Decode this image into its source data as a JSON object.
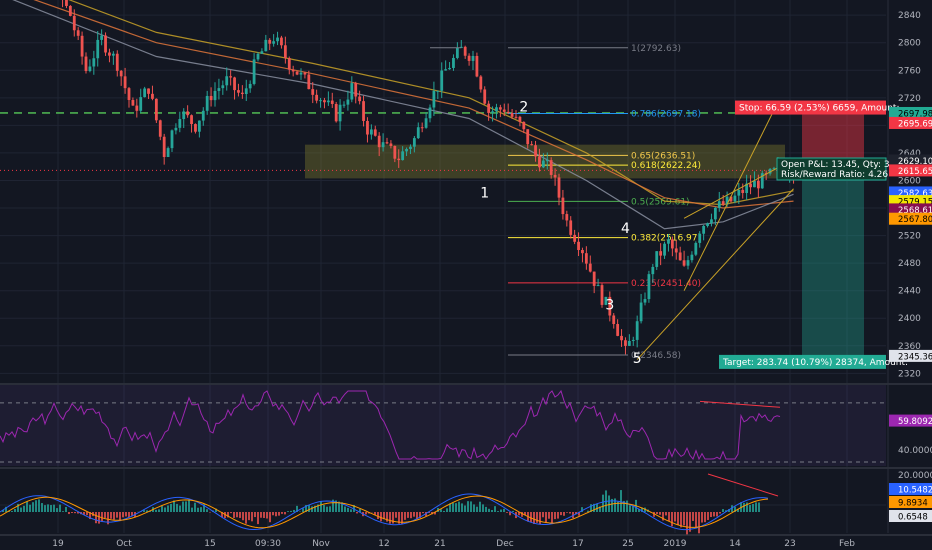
{
  "colors": {
    "background": "#131722",
    "grid": "#1f2433",
    "up_candle": "#26a69a",
    "down_candle": "#ef5350",
    "rsi_line": "#9c27b0",
    "macd_line": "#2962ff",
    "signal_line": "#ff9800",
    "stop_color": "#f23645",
    "target_color": "#22ab94"
  },
  "chart_data": {
    "type": "candlestick",
    "price_axis": {
      "ylim": [
        2306,
        2862
      ],
      "ticks": [
        2840,
        2800,
        2760,
        2720,
        2680,
        2640,
        2600,
        2560,
        2520,
        2480,
        2440,
        2400,
        2360,
        2320
      ]
    },
    "time_axis": {
      "labels": [
        "19",
        "Oct",
        "15",
        "09:30",
        "Nov",
        "12",
        "21",
        "Dec",
        "17",
        "25",
        "2019",
        "14",
        "23",
        "Feb"
      ]
    },
    "close_path": [
      [
        0,
        2935
      ],
      [
        6,
        2912
      ],
      [
        10,
        2865
      ],
      [
        14,
        2880
      ],
      [
        18,
        2840
      ],
      [
        22,
        2760
      ],
      [
        26,
        2805
      ],
      [
        30,
        2770
      ],
      [
        34,
        2700
      ],
      [
        38,
        2735
      ],
      [
        42,
        2640
      ],
      [
        46,
        2700
      ],
      [
        50,
        2680
      ],
      [
        54,
        2725
      ],
      [
        58,
        2745
      ],
      [
        62,
        2720
      ],
      [
        66,
        2780
      ],
      [
        70,
        2808
      ],
      [
        74,
        2770
      ],
      [
        78,
        2745
      ],
      [
        82,
        2720
      ],
      [
        86,
        2695
      ],
      [
        90,
        2735
      ],
      [
        94,
        2675
      ],
      [
        98,
        2650
      ],
      [
        102,
        2633
      ],
      [
        106,
        2660
      ],
      [
        110,
        2715
      ],
      [
        114,
        2760
      ],
      [
        118,
        2790
      ],
      [
        121,
        2780
      ],
      [
        125,
        2700
      ],
      [
        129,
        2705
      ],
      [
        133,
        2680
      ],
      [
        137,
        2635
      ],
      [
        141,
        2614
      ],
      [
        145,
        2540
      ],
      [
        149,
        2500
      ],
      [
        153,
        2440
      ],
      [
        157,
        2400
      ],
      [
        160,
        2350
      ],
      [
        163,
        2390
      ],
      [
        167,
        2480
      ],
      [
        171,
        2510
      ],
      [
        175,
        2470
      ],
      [
        179,
        2530
      ],
      [
        183,
        2560
      ],
      [
        187,
        2570
      ],
      [
        191,
        2590
      ],
      [
        195,
        2600
      ],
      [
        199,
        2615
      ],
      [
        203,
        2615
      ]
    ],
    "moving_averages": [
      {
        "color": "#c9a227",
        "points": [
          [
            0,
            2900
          ],
          [
            40,
            2815
          ],
          [
            80,
            2770
          ],
          [
            120,
            2720
          ],
          [
            150,
            2640
          ],
          [
            170,
            2570
          ],
          [
            185,
            2565
          ],
          [
            203,
            2585
          ]
        ]
      },
      {
        "color": "#e0763a",
        "points": [
          [
            0,
            2880
          ],
          [
            40,
            2800
          ],
          [
            80,
            2755
          ],
          [
            120,
            2705
          ],
          [
            150,
            2630
          ],
          [
            170,
            2575
          ],
          [
            185,
            2560
          ],
          [
            203,
            2570
          ]
        ]
      },
      {
        "color": "#8a8fa0",
        "points": [
          [
            0,
            2870
          ],
          [
            40,
            2780
          ],
          [
            80,
            2740
          ],
          [
            120,
            2690
          ],
          [
            150,
            2600
          ],
          [
            170,
            2530
          ],
          [
            185,
            2540
          ],
          [
            203,
            2580
          ]
        ]
      }
    ],
    "fib_retracement": {
      "levels": [
        {
          "label": "1(2792.63)",
          "price": 2792.63,
          "color": "#787b86"
        },
        {
          "label": "0.786(2697.18)",
          "price": 2697.18,
          "color": "#2196f3"
        },
        {
          "label": "0.65(2636.51)",
          "price": 2636.51,
          "color": "#f2c94c"
        },
        {
          "label": "0.618(2622.24)",
          "price": 2622.24,
          "color": "#ffeb3b"
        },
        {
          "label": "0.5(2569.61)",
          "price": 2569.61,
          "color": "#4caf50"
        },
        {
          "label": "0.382(2516.97)",
          "price": 2516.97,
          "color": "#ffeb3b"
        },
        {
          "label": "0.235(2451.40)",
          "price": 2451.4,
          "color": "#f23645"
        },
        {
          "label": "0(2346.58)",
          "price": 2346.58,
          "color": "#787b86"
        }
      ]
    },
    "waves": [
      {
        "label": "1",
        "t": 124,
        "price": 2575
      },
      {
        "label": "2",
        "t": 134,
        "price": 2700
      },
      {
        "label": "3",
        "t": 156,
        "price": 2413
      },
      {
        "label": "4",
        "t": 160,
        "price": 2524
      },
      {
        "label": "5",
        "t": 163,
        "price": 2335
      }
    ],
    "price_labels": [
      {
        "text": "2697.98",
        "price": 2697.98,
        "bg": "#22ab94",
        "fg": "#000000"
      },
      {
        "text": "2695.69",
        "price": 2683.5,
        "bg": "#f23645",
        "fg": "#ffffff"
      },
      {
        "text": "2629.10",
        "price": 2629.1,
        "bg": "#1e222d",
        "fg": "#ffffff"
      },
      {
        "text": "2615.65",
        "price": 2614.6,
        "bg": "#f23645",
        "fg": "#ffffff"
      },
      {
        "text": "2582.63",
        "price": 2582.63,
        "bg": "#2962ff",
        "fg": "#ffffff"
      },
      {
        "text": "2579.15",
        "price": 2570.0,
        "bg": "#f2e600",
        "fg": "#000000"
      },
      {
        "text": "2568.61",
        "price": 2558.0,
        "bg": "#880e4f",
        "fg": "#ffffff"
      },
      {
        "text": "2567.80",
        "price": 2544.5,
        "bg": "#ff9800",
        "fg": "#000000"
      },
      {
        "text": "2345.36",
        "price": 2345.36,
        "bg": "#e0e3eb",
        "fg": "#000000"
      }
    ],
    "position": {
      "entry": 2629.1,
      "stop_price": 2695.69,
      "target_price": 2345.36,
      "stop_text": "Stop: 66.59 (2.53%) 6659, Amount:",
      "target_text": "Target: 283.74 (10.79%) 28374, Amount:",
      "pnl_text": "Open P&L: 13.45, Qty: 3",
      "rr_text": "Risk/Reward Ratio: 4.26"
    },
    "rsi": {
      "levels": [
        70,
        30
      ],
      "ticks": [
        "40.0000"
      ],
      "last_label": "59.8092"
    },
    "macd": {
      "ticks": [
        "20.0000"
      ],
      "labels": [
        "10.5482",
        "9.8934",
        "0.6548"
      ]
    }
  }
}
